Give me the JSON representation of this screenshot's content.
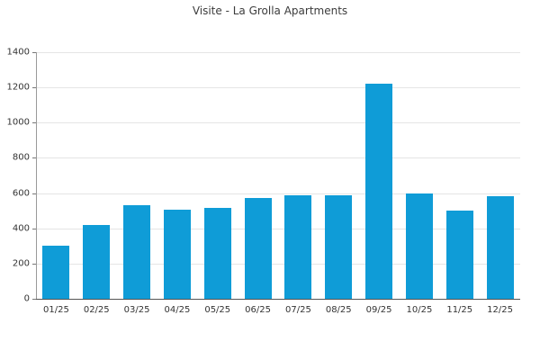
{
  "chart_data": {
    "type": "bar",
    "title": "Visite - La Grolla Apartments",
    "categories": [
      "01/25",
      "02/25",
      "03/25",
      "04/25",
      "05/25",
      "06/25",
      "07/25",
      "08/25",
      "09/25",
      "10/25",
      "11/25",
      "12/25"
    ],
    "values": [
      300,
      420,
      530,
      505,
      515,
      570,
      590,
      590,
      1220,
      600,
      500,
      585
    ],
    "xlabel": "",
    "ylabel": "",
    "ylim": [
      0,
      1400
    ],
    "yticks": [
      0,
      200,
      400,
      600,
      800,
      1000,
      1200,
      1400
    ],
    "grid": "horizontal",
    "legend": "none",
    "bar_color": "#0F9CD7",
    "grid_color": "#e5e5e5",
    "axis_color": "#555555",
    "tick_label_color": "#333333",
    "title_color": "#3c3c3c"
  }
}
